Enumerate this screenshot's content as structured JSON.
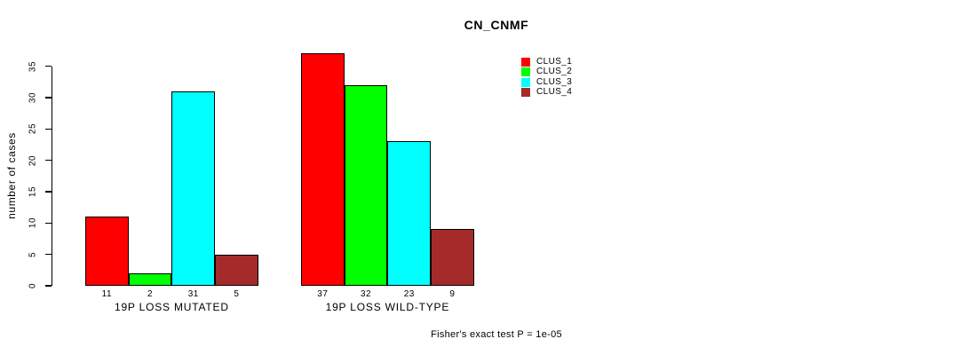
{
  "chart_data": {
    "type": "bar",
    "title": "CN_CNMF",
    "ylabel": "number of cases",
    "xlabel": "",
    "ylim": [
      0,
      37
    ],
    "yticks": [
      0,
      5,
      10,
      15,
      20,
      25,
      30,
      35
    ],
    "categories": [
      "19P LOSS MUTATED",
      "19P LOSS WILD-TYPE"
    ],
    "series": [
      {
        "name": "CLUS_1",
        "color": "#FF0000",
        "values": [
          11,
          37
        ]
      },
      {
        "name": "CLUS_2",
        "color": "#00FF00",
        "values": [
          2,
          32
        ]
      },
      {
        "name": "CLUS_3",
        "color": "#00FFFF",
        "values": [
          31,
          23
        ]
      },
      {
        "name": "CLUS_4",
        "color": "#A52A2A",
        "values": [
          5,
          9
        ]
      }
    ],
    "bar_value_labels_shown": true,
    "legend_position": "top-right",
    "grid": false,
    "annotation": "Fisher's exact test P = 1e-05"
  },
  "colors": {
    "background": "#FFFFFF",
    "axis": "#000000",
    "bar_border": "#000000",
    "text": "#000000"
  }
}
